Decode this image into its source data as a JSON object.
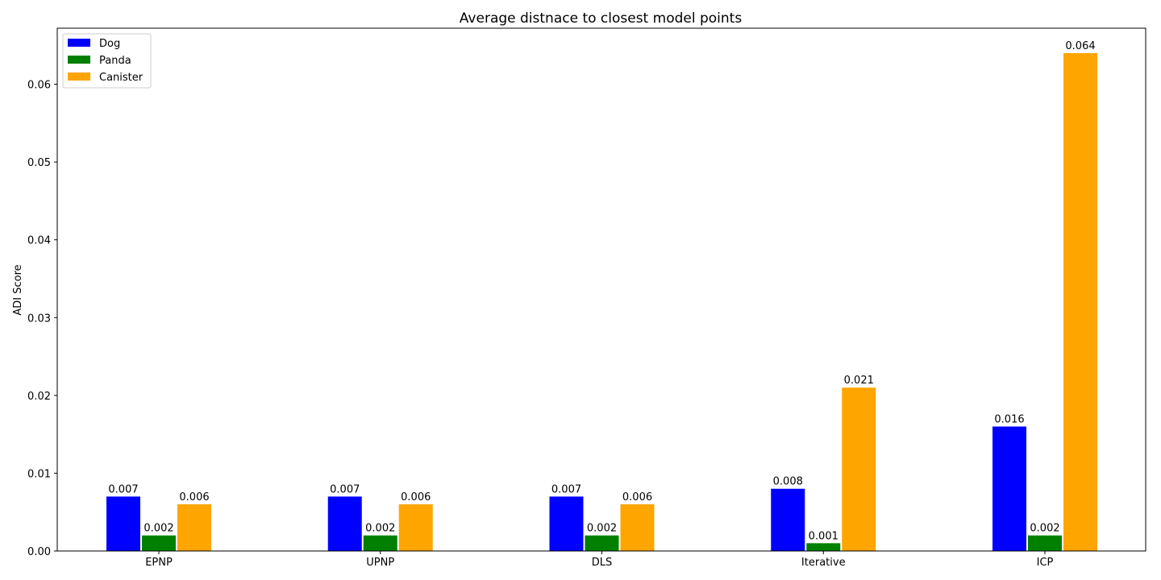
{
  "chart_data": {
    "type": "bar",
    "title": "Average distnace to closest model points",
    "xlabel": "",
    "ylabel": "ADI Score",
    "categories": [
      "EPNP",
      "UPNP",
      "DLS",
      "Iterative",
      "ICP"
    ],
    "series": [
      {
        "name": "Dog",
        "color": "#0000ff",
        "values": [
          0.007,
          0.007,
          0.007,
          0.008,
          0.016
        ]
      },
      {
        "name": "Panda",
        "color": "#008000",
        "values": [
          0.002,
          0.002,
          0.002,
          0.001,
          0.002
        ]
      },
      {
        "name": "Canister",
        "color": "#ffa500",
        "values": [
          0.006,
          0.006,
          0.006,
          0.021,
          0.064
        ]
      }
    ],
    "ylim": [
      0,
      0.0672
    ],
    "yticks": [
      "0.00",
      "0.01",
      "0.02",
      "0.03",
      "0.04",
      "0.05",
      "0.06"
    ],
    "value_labels": [
      [
        "0.007",
        "0.007",
        "0.007",
        "0.008",
        "0.016"
      ],
      [
        "0.002",
        "0.002",
        "0.002",
        "0.001",
        "0.002"
      ],
      [
        "0.006",
        "0.006",
        "0.006",
        "0.021",
        "0.064"
      ]
    ],
    "legend": "top-left",
    "grid": false
  }
}
